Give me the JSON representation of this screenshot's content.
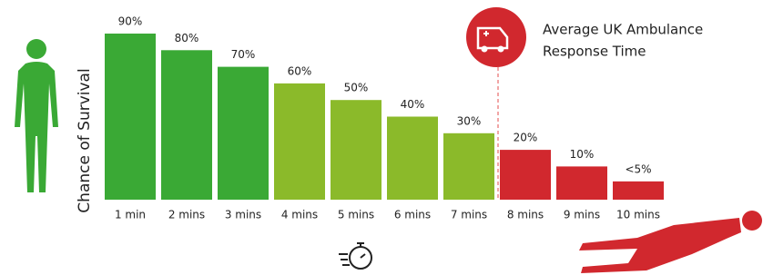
{
  "chart_data": {
    "type": "bar",
    "y_label": "Chance of Survival",
    "annotation": [
      "Average UK Ambulance",
      "Response Time"
    ],
    "categories": [
      "1 min",
      "2 mins",
      "3 mins",
      "4 mins",
      "5 mins",
      "6 mins",
      "7 mins",
      "8 mins",
      "9 mins",
      "10 mins"
    ],
    "values": [
      90,
      80,
      70,
      60,
      50,
      40,
      30,
      20,
      10,
      1
    ],
    "value_labels": [
      "90%",
      "80%",
      "70%",
      "60%",
      "50%",
      "40%",
      "30%",
      "20%",
      "10%",
      "<5%"
    ],
    "colors": [
      "#3aa935",
      "#3aa935",
      "#3aa935",
      "#8bba2a",
      "#8bba2a",
      "#8bba2a",
      "#8bba2a",
      "#d1282e",
      "#d1282e",
      "#d1282e"
    ],
    "ylim": [
      -10,
      90
    ]
  }
}
